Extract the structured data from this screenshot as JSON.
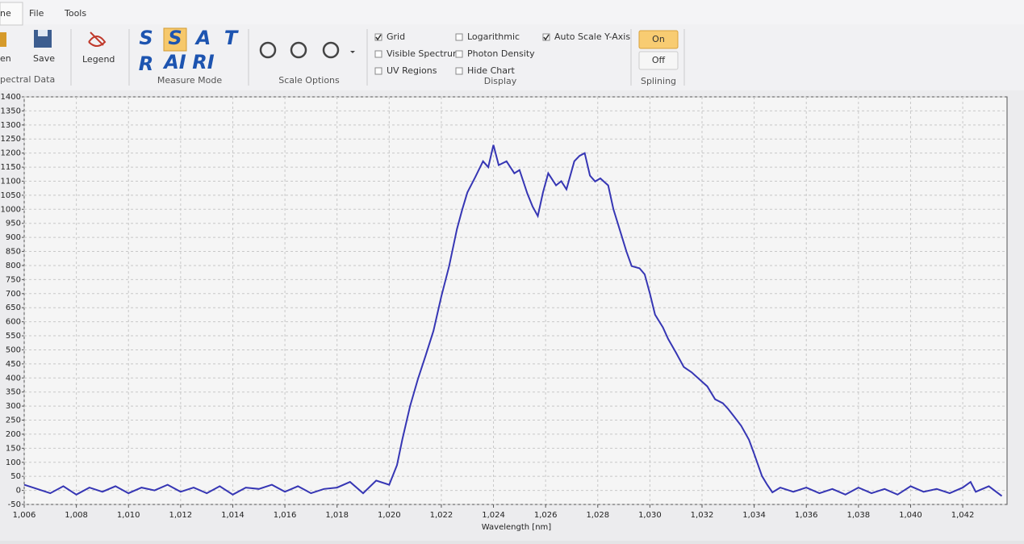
{
  "ribbon": {
    "tabs": [
      "ne",
      "File",
      "Tools"
    ],
    "spectral_data": {
      "items": [
        "en",
        "Save"
      ],
      "label": "pectral Data"
    },
    "legend": "Legend",
    "measure_mode": {
      "icons": [
        "S",
        "S",
        "A",
        "T",
        "R",
        "AI",
        "RI"
      ],
      "label": "Measure Mode"
    },
    "scale_options": {
      "label": "Scale Options"
    },
    "display": {
      "checkboxes": [
        {
          "label": "Grid",
          "checked": true
        },
        {
          "label": "Visible Spectrum",
          "checked": false
        },
        {
          "label": "UV Regions",
          "checked": false
        },
        {
          "label": "Logarithmic",
          "checked": false
        },
        {
          "label": "Photon Density",
          "checked": false
        },
        {
          "label": "Hide Chart",
          "checked": false
        },
        {
          "label": "Auto Scale Y-Axis",
          "checked": true
        }
      ],
      "label": "Display"
    },
    "splining": {
      "buttons": [
        "On",
        "Off"
      ],
      "active_button": 0,
      "label": "Splining"
    }
  },
  "chart_data": {
    "type": "line",
    "x_label": "Wavelength [nm]",
    "color": "#3636b4",
    "grid": true,
    "x": [
      1006,
      1006.5,
      1007,
      1007.5,
      1008,
      1008.5,
      1009,
      1009.5,
      1010,
      1010.5,
      1011,
      1011.5,
      1012,
      1012.5,
      1013,
      1013.5,
      1014,
      1014.5,
      1015,
      1015.5,
      1016,
      1016.5,
      1017,
      1017.5,
      1018,
      1018.5,
      1019,
      1019.5,
      1020,
      1020.3,
      1020.5,
      1020.8,
      1021.1,
      1021.4,
      1021.7,
      1022.0,
      1022.3,
      1022.6,
      1022.8,
      1023.0,
      1023.3,
      1023.6,
      1023.8,
      1024.0,
      1024.2,
      1024.5,
      1024.8,
      1025.0,
      1025.3,
      1025.5,
      1025.7,
      1025.9,
      1026.1,
      1026.4,
      1026.6,
      1026.8,
      1027.1,
      1027.3,
      1027.5,
      1027.7,
      1027.9,
      1028.1,
      1028.4,
      1028.6,
      1028.8,
      1029.1,
      1029.3,
      1029.6,
      1029.8,
      1030.0,
      1030.2,
      1030.5,
      1030.7,
      1031.0,
      1031.3,
      1031.6,
      1031.9,
      1032.2,
      1032.5,
      1032.8,
      1033.0,
      1033.2,
      1033.5,
      1033.8,
      1034.0,
      1034.3,
      1034.5,
      1034.7,
      1035.0,
      1035.5,
      1036,
      1036.5,
      1037,
      1037.5,
      1038,
      1038.5,
      1039,
      1039.5,
      1040,
      1040.5,
      1041,
      1041.5,
      1042,
      1042.3,
      1042.5,
      1043,
      1043.5
    ],
    "values": [
      20,
      5,
      -10,
      15,
      -15,
      10,
      -5,
      15,
      -10,
      10,
      0,
      20,
      -5,
      10,
      -10,
      15,
      -15,
      10,
      5,
      20,
      -5,
      15,
      -10,
      5,
      10,
      30,
      -10,
      35,
      20,
      90,
      180,
      300,
      395,
      480,
      568,
      690,
      798,
      930,
      999,
      1060,
      1114,
      1171,
      1150,
      1229,
      1157,
      1171,
      1128,
      1140,
      1056,
      1010,
      976,
      1060,
      1128,
      1085,
      1100,
      1071,
      1171,
      1190,
      1200,
      1120,
      1099,
      1110,
      1085,
      1000,
      941,
      850,
      798,
      790,
      769,
      700,
      625,
      580,
      539,
      490,
      439,
      420,
      395,
      370,
      324,
      310,
      290,
      266,
      230,
      180,
      130,
      51,
      20,
      -7,
      10,
      -5,
      10,
      -10,
      5,
      -15,
      10,
      -10,
      5,
      -15,
      15,
      -5,
      5,
      -10,
      10,
      30,
      -5,
      15,
      -20
    ],
    "xlim": [
      1006,
      1043.7
    ],
    "ylim": [
      -50,
      1400
    ],
    "xticks": [
      {
        "value": 1006,
        "label": "1,006"
      },
      {
        "value": 1008,
        "label": "1,008"
      },
      {
        "value": 1010,
        "label": "1,010"
      },
      {
        "value": 1012,
        "label": "1,012"
      },
      {
        "value": 1014,
        "label": "1,014"
      },
      {
        "value": 1016,
        "label": "1,016"
      },
      {
        "value": 1018,
        "label": "1,018"
      },
      {
        "value": 1020,
        "label": "1,020"
      },
      {
        "value": 1022,
        "label": "1,022"
      },
      {
        "value": 1024,
        "label": "1,024"
      },
      {
        "value": 1026,
        "label": "1,026"
      },
      {
        "value": 1028,
        "label": "1,028"
      },
      {
        "value": 1030,
        "label": "1,030"
      },
      {
        "value": 1032,
        "label": "1,032"
      },
      {
        "value": 1034,
        "label": "1,034"
      },
      {
        "value": 1036,
        "label": "1,036"
      },
      {
        "value": 1038,
        "label": "1,038"
      },
      {
        "value": 1040,
        "label": "1,040"
      },
      {
        "value": 1042,
        "label": "1,042"
      }
    ],
    "yticks": [
      -50,
      0,
      50,
      100,
      150,
      200,
      250,
      300,
      350,
      400,
      450,
      500,
      550,
      600,
      650,
      700,
      750,
      800,
      850,
      900,
      950,
      1000,
      1050,
      1100,
      1150,
      1200,
      1250,
      1300,
      1350,
      1400
    ]
  }
}
